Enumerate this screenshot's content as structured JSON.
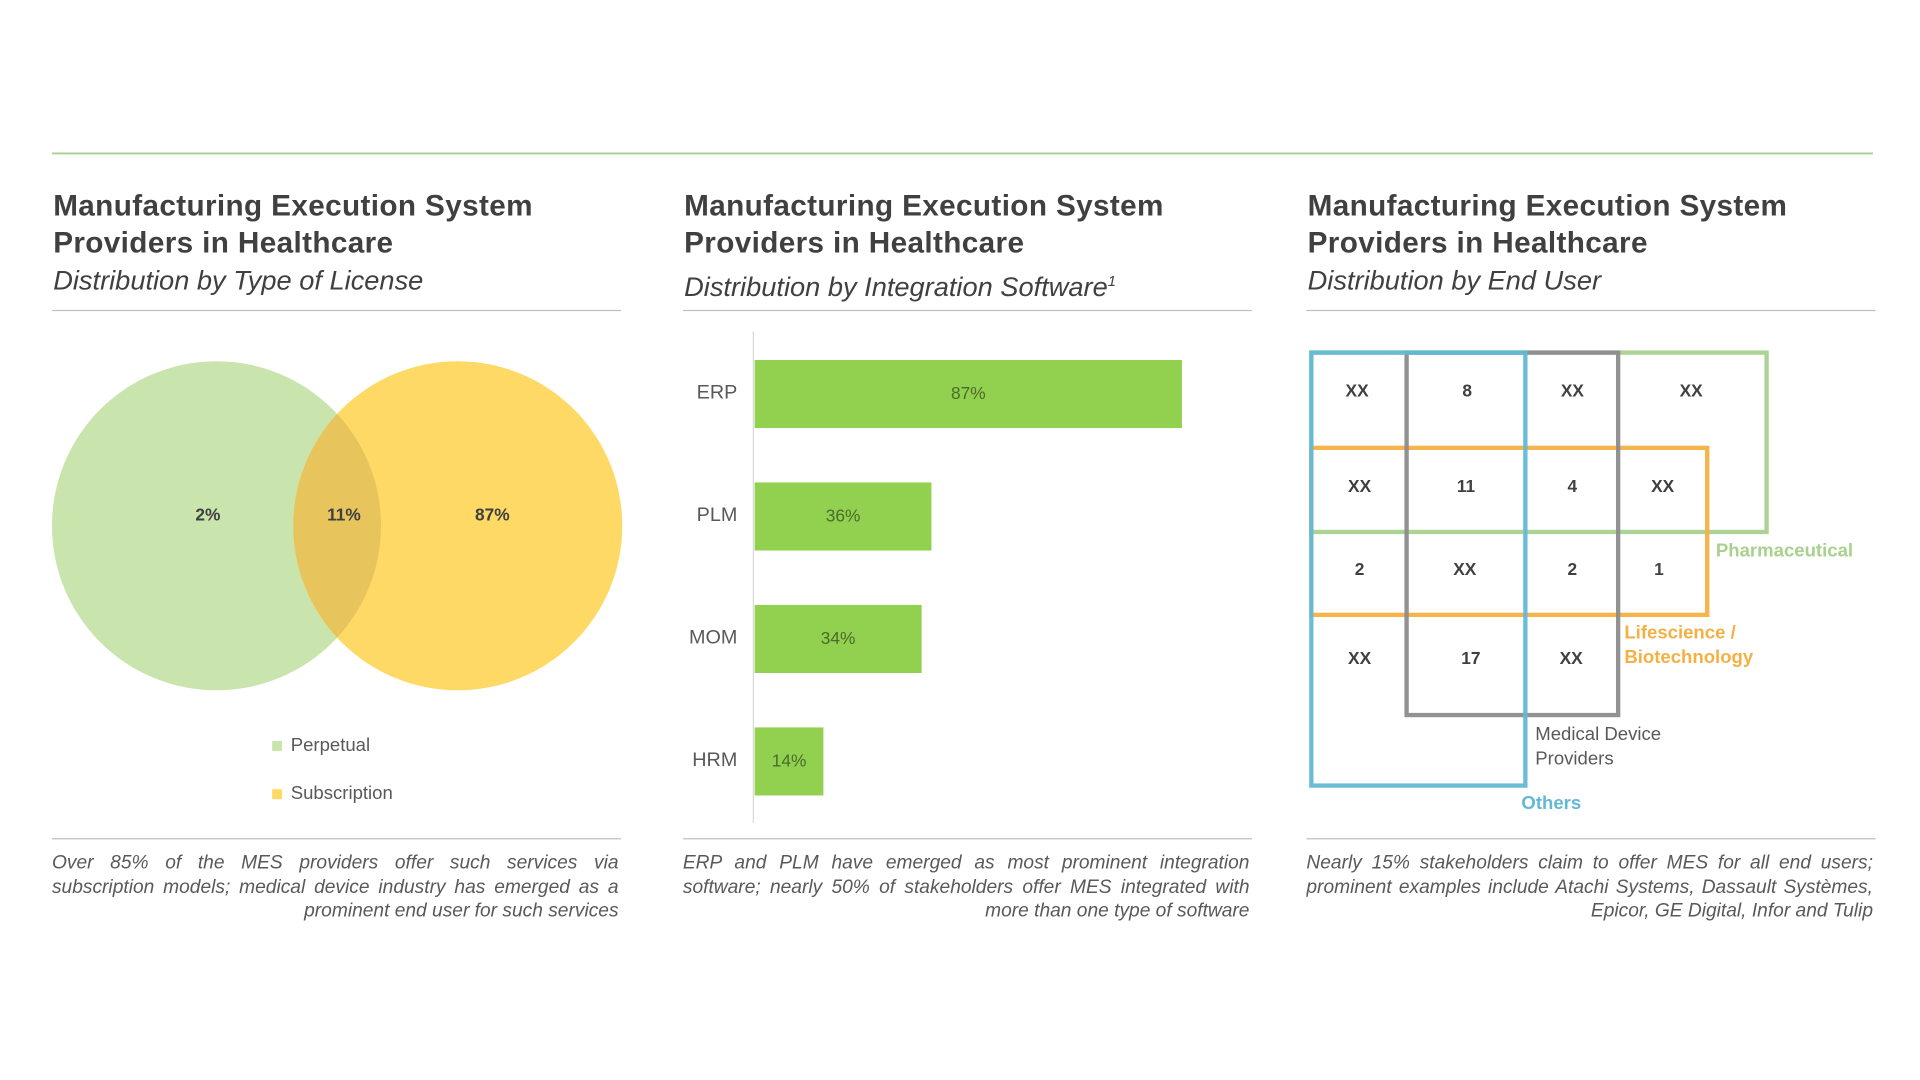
{
  "chart_data": [
    {
      "type": "venn",
      "title": "Manufacturing Execution System Providers in Healthcare",
      "subtitle": "Distribution by Type of License",
      "series": [
        {
          "name": "Perpetual",
          "color": "#c9e5ad"
        },
        {
          "name": "Subscription",
          "color": "#ffd966"
        }
      ],
      "overlap_color": "#e8c55c",
      "values": [
        2,
        11,
        87
      ],
      "value_labels": [
        "2%",
        "11%",
        "87%"
      ],
      "caption": "Over 85% of the MES providers offer such services via subscription models; medical device industry has emerged as a prominent end user for such services"
    },
    {
      "type": "bar",
      "title": "Manufacturing Execution System Providers in Healthcare",
      "subtitle": "Distribution by Integration Software",
      "subtitle_note": "1",
      "categories": [
        "ERP",
        "PLM",
        "MOM",
        "HRM"
      ],
      "values": [
        87,
        36,
        34,
        14
      ],
      "value_labels": [
        "87%",
        "36%",
        "34%",
        "14%"
      ],
      "color": "#92d050",
      "xlim": [
        0,
        100
      ],
      "caption": "ERP and PLM have emerged as most prominent integration software;  nearly 50% of stakeholders offer MES integrated with more than one type of software"
    },
    {
      "type": "venn-grid",
      "title": "Manufacturing Execution System Providers in Healthcare",
      "subtitle": "Distribution by End User",
      "rows": [
        [
          "XX",
          8,
          "XX",
          "XX"
        ],
        [
          "XX",
          11,
          4,
          "XX"
        ],
        [
          2,
          "XX",
          2,
          1
        ],
        [
          "XX",
          17,
          "XX"
        ]
      ],
      "groups": [
        {
          "name": "Pharmaceutical",
          "color": "#a9d18e"
        },
        {
          "name": "Lifescience / Biotechnology",
          "color": "#f4b042"
        },
        {
          "name": "Medical Device Providers",
          "color": "#8c8c8c"
        },
        {
          "name": "Others",
          "color": "#63b9d5"
        }
      ],
      "caption": "Nearly 15% stakeholders  claim to offer MES for all end users; prominent examples include Atachi Systems, Dassault  Systèmes,  Epicor, GE Digital, Infor and Tulip"
    }
  ]
}
